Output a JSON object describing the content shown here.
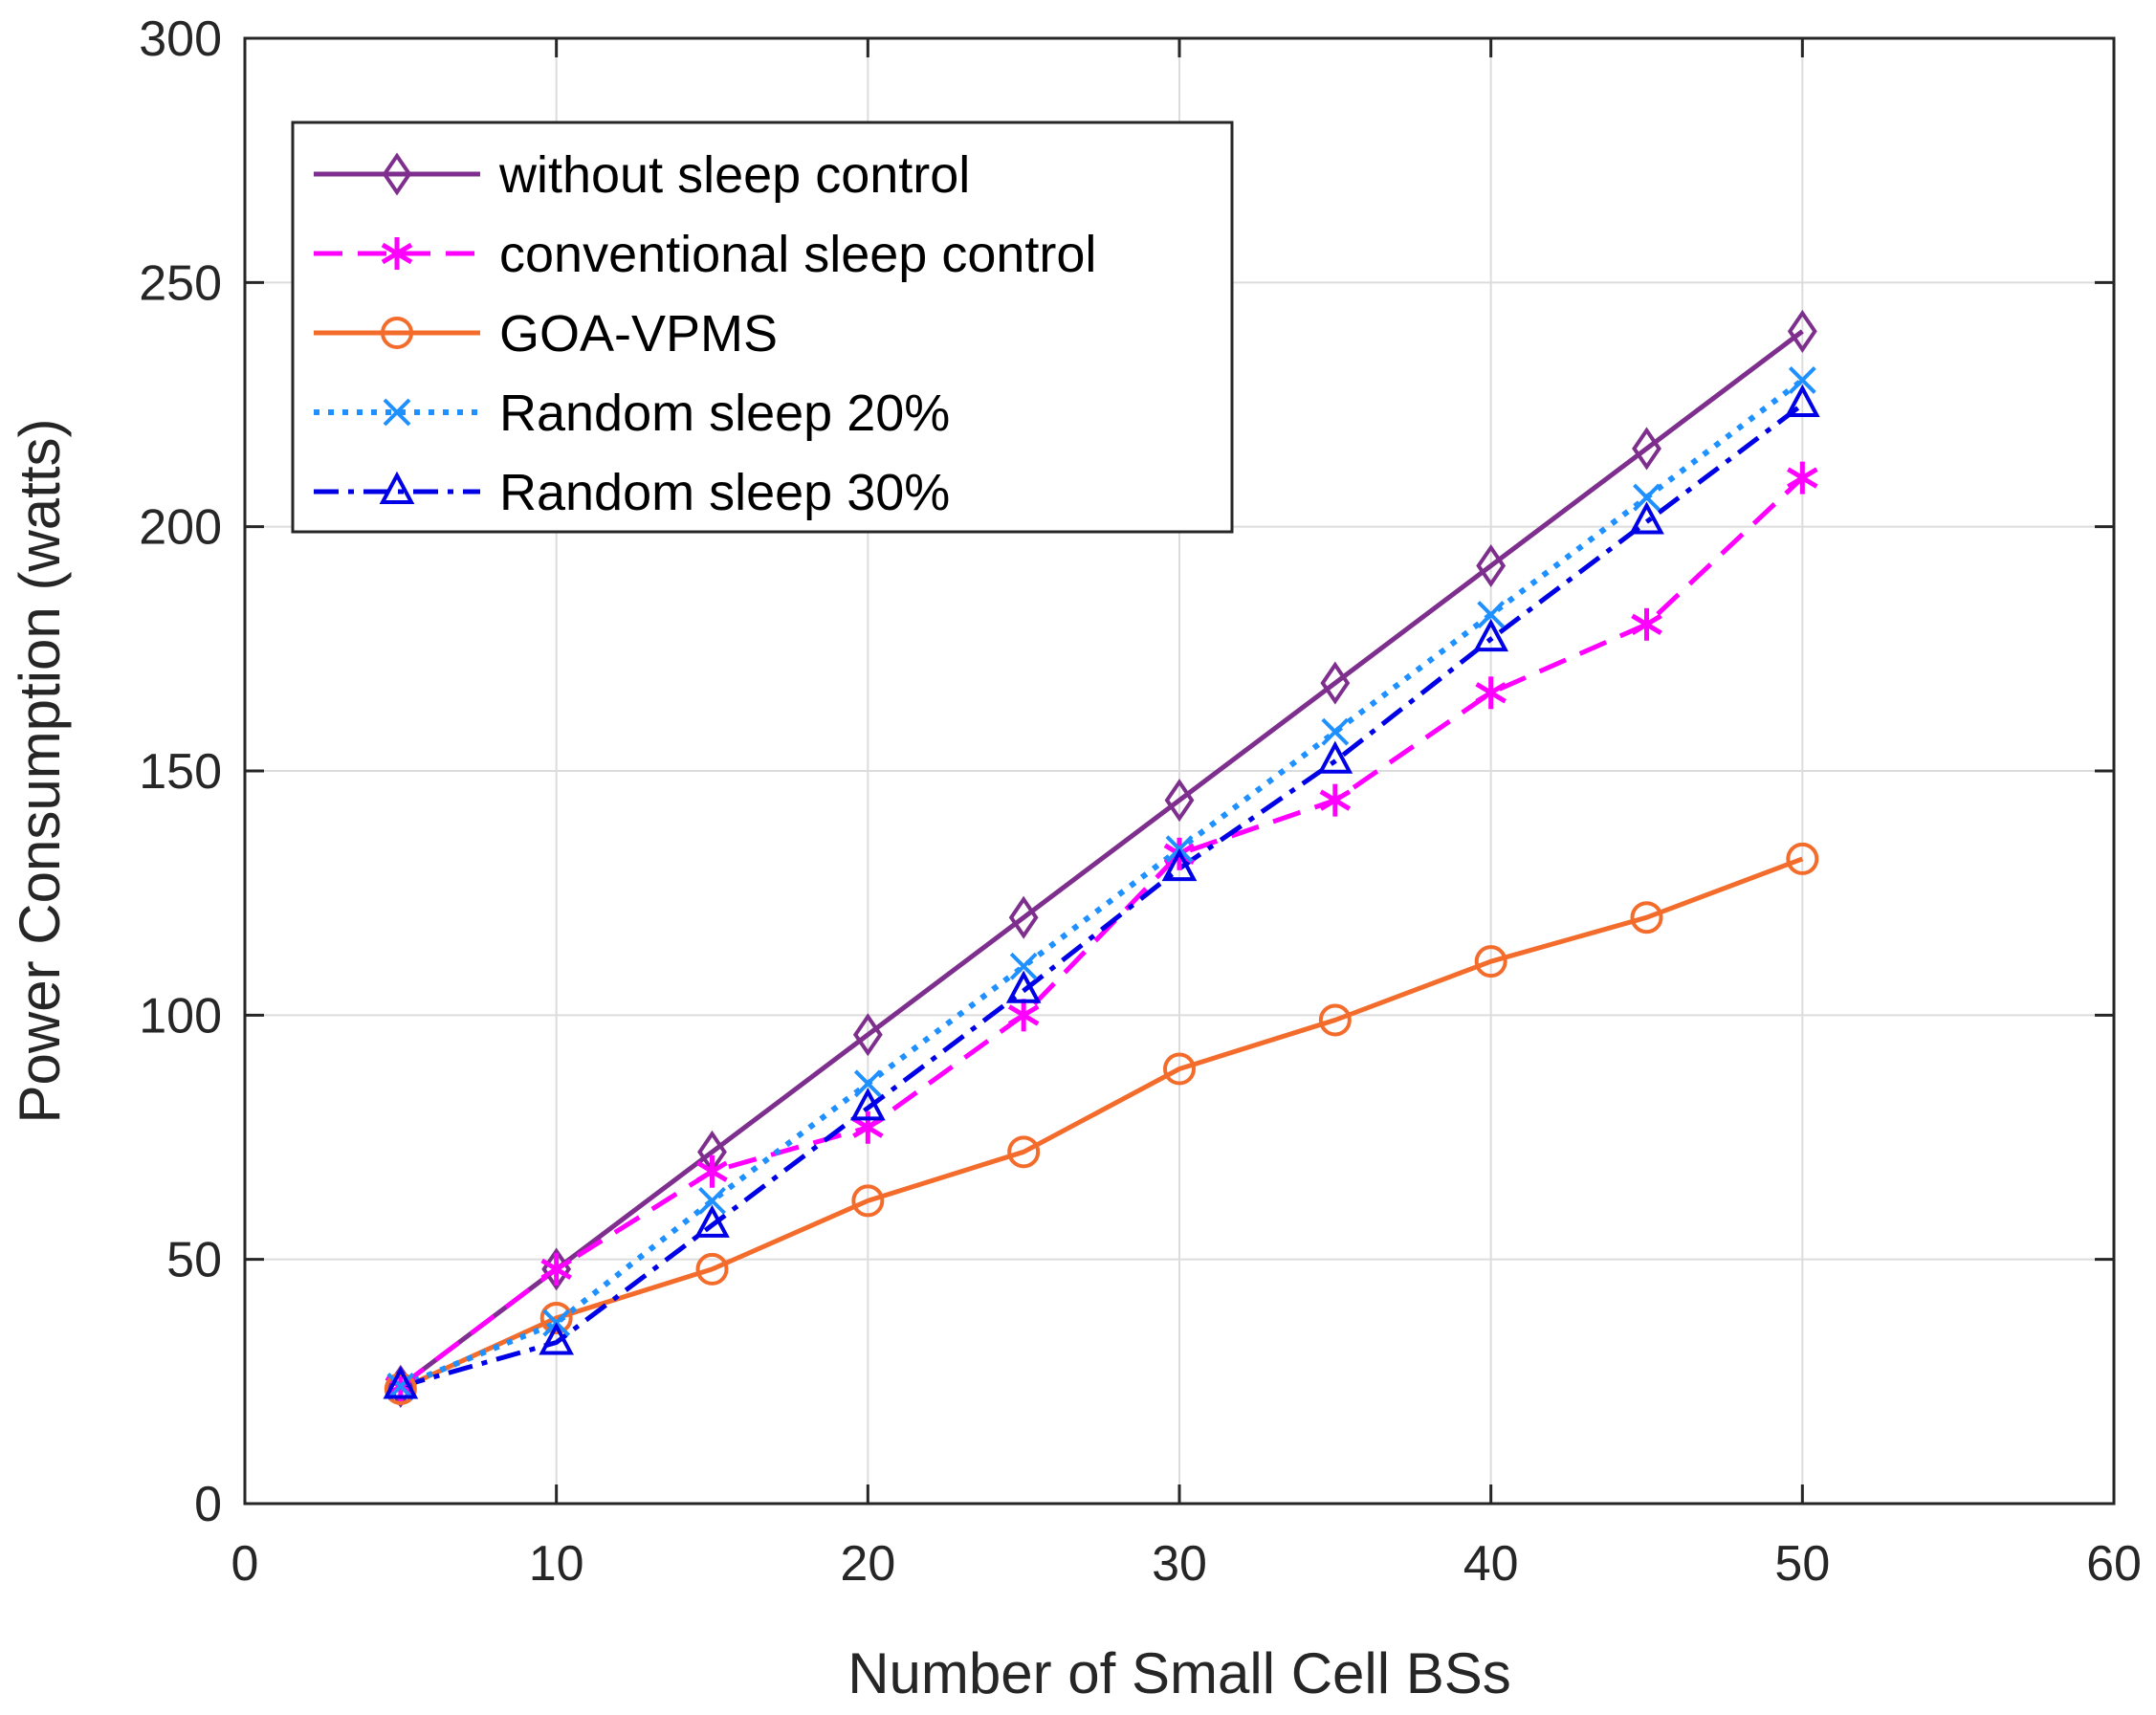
{
  "chart_data": {
    "type": "line",
    "xlabel": "Number of Small Cell BSs",
    "ylabel": "Power Consumption (watts)",
    "xlim": [
      0,
      60
    ],
    "ylim": [
      0,
      300
    ],
    "xticks": [
      0,
      10,
      20,
      30,
      40,
      50,
      60
    ],
    "yticks": [
      0,
      50,
      100,
      150,
      200,
      250,
      300
    ],
    "xtick_labels": [
      "0",
      "10",
      "20",
      "30",
      "40",
      "50",
      "60"
    ],
    "ytick_labels": [
      "0",
      "50",
      "100",
      "150",
      "200",
      "250",
      "300"
    ],
    "grid": true,
    "legend_position": "top-left",
    "x": [
      5,
      10,
      15,
      20,
      25,
      30,
      35,
      40,
      45,
      50
    ],
    "series": [
      {
        "name": "without sleep control",
        "color": "#7E2F8E",
        "dash": "solid",
        "marker": "diamond",
        "values": [
          24,
          48,
          72,
          96,
          120,
          144,
          168,
          192,
          216,
          240
        ]
      },
      {
        "name": "conventional sleep control",
        "color": "#FF00FF",
        "dash": "dashed",
        "marker": "asterisk",
        "values": [
          24,
          48,
          68,
          77,
          100,
          133,
          144,
          166,
          180,
          210
        ]
      },
      {
        "name": "GOA-VPMS",
        "color": "#F36C2B",
        "dash": "solid",
        "marker": "circle",
        "values": [
          23.5,
          38,
          48,
          62,
          72,
          89,
          99,
          111,
          120,
          132
        ]
      },
      {
        "name": "Random sleep 20%",
        "color": "#1E90FF",
        "dash": "dotted",
        "marker": "x",
        "values": [
          24,
          37,
          62,
          86,
          110,
          134,
          158,
          182,
          206,
          230
        ]
      },
      {
        "name": "Random sleep 30%",
        "color": "#0000E6",
        "dash": "dashdot",
        "marker": "triangle",
        "values": [
          24,
          33,
          57,
          81,
          105,
          130,
          152,
          177,
          201,
          225
        ]
      }
    ]
  }
}
